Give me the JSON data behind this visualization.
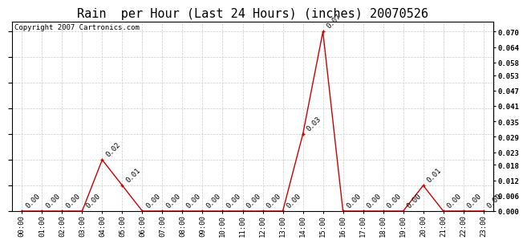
{
  "title": "Rain  per Hour (Last 24 Hours) (inches) 20070526",
  "copyright": "Copyright 2007 Cartronics.com",
  "hours": [
    0,
    1,
    2,
    3,
    4,
    5,
    6,
    7,
    8,
    9,
    10,
    11,
    12,
    13,
    14,
    15,
    16,
    17,
    18,
    19,
    20,
    21,
    22,
    23
  ],
  "values": [
    0.0,
    0.0,
    0.0,
    0.0,
    0.02,
    0.01,
    0.0,
    0.0,
    0.0,
    0.0,
    0.0,
    0.0,
    0.0,
    0.0,
    0.03,
    0.07,
    0.0,
    0.0,
    0.0,
    0.0,
    0.01,
    0.0,
    0.0,
    0.0
  ],
  "line_color": "#cc0000",
  "background_color": "#ffffff",
  "grid_color": "#cccccc",
  "ylim": [
    0.0,
    0.074
  ],
  "yticks_right": [
    0.0,
    0.006,
    0.012,
    0.018,
    0.023,
    0.029,
    0.035,
    0.041,
    0.047,
    0.053,
    0.058,
    0.064,
    0.07
  ],
  "title_fontsize": 11,
  "copyright_fontsize": 6.5,
  "tick_fontsize": 6.5,
  "annotation_fontsize": 6.5
}
